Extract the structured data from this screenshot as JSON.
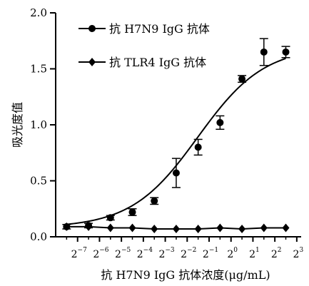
{
  "chart_data": {
    "type": "line",
    "title": "",
    "xlabel": "抗 H7N9 IgG 抗体浓度(μg/mL)",
    "ylabel": "吸光度值",
    "ylim": [
      0,
      2.0
    ],
    "xscale": "log2",
    "xlim_exponent": [
      -8,
      3.2
    ],
    "x_ticks": [
      {
        "base": "2",
        "exp": "−7",
        "value": 0.0078125
      },
      {
        "base": "2",
        "exp": "−6",
        "value": 0.015625
      },
      {
        "base": "2",
        "exp": "−5",
        "value": 0.03125
      },
      {
        "base": "2",
        "exp": "−4",
        "value": 0.0625
      },
      {
        "base": "2",
        "exp": "−3",
        "value": 0.125
      },
      {
        "base": "2",
        "exp": "−2",
        "value": 0.25
      },
      {
        "base": "2",
        "exp": "−1",
        "value": 0.5
      },
      {
        "base": "2",
        "exp": "0",
        "value": 1
      },
      {
        "base": "2",
        "exp": "1",
        "value": 2
      },
      {
        "base": "2",
        "exp": "2",
        "value": 4
      },
      {
        "base": "2",
        "exp": "3",
        "value": 8
      }
    ],
    "y_ticks": [
      "0.0",
      "0.5",
      "1.0",
      "1.5",
      "2.0"
    ],
    "y_tick_values": [
      0,
      0.5,
      1.0,
      1.5,
      2.0
    ],
    "legend_position": "top-left",
    "series": [
      {
        "name": "抗 H7N9 IgG 抗体",
        "marker": "circle",
        "x": [
          0.00552,
          0.01105,
          0.0221,
          0.0442,
          0.0884,
          0.1768,
          0.3536,
          0.7071,
          1.4142,
          2.8284,
          5.6569
        ],
        "y": [
          0.09,
          0.1,
          0.17,
          0.22,
          0.32,
          0.57,
          0.8,
          1.02,
          1.41,
          1.65,
          1.65
        ],
        "error": [
          0.02,
          0.02,
          0.02,
          0.03,
          0.03,
          0.13,
          0.07,
          0.06,
          0.03,
          0.12,
          0.05
        ],
        "fit_curve": {
          "bottom": 0.08,
          "top": 1.7,
          "ec50": 0.35,
          "hill": 0.95
        }
      },
      {
        "name": "抗 TLR4 IgG 抗体",
        "marker": "diamond",
        "x": [
          0.00552,
          0.01105,
          0.0221,
          0.0442,
          0.0884,
          0.1768,
          0.3536,
          0.7071,
          1.4142,
          2.8284,
          5.6569
        ],
        "y": [
          0.09,
          0.09,
          0.08,
          0.08,
          0.07,
          0.07,
          0.07,
          0.08,
          0.07,
          0.08,
          0.08
        ]
      }
    ]
  }
}
